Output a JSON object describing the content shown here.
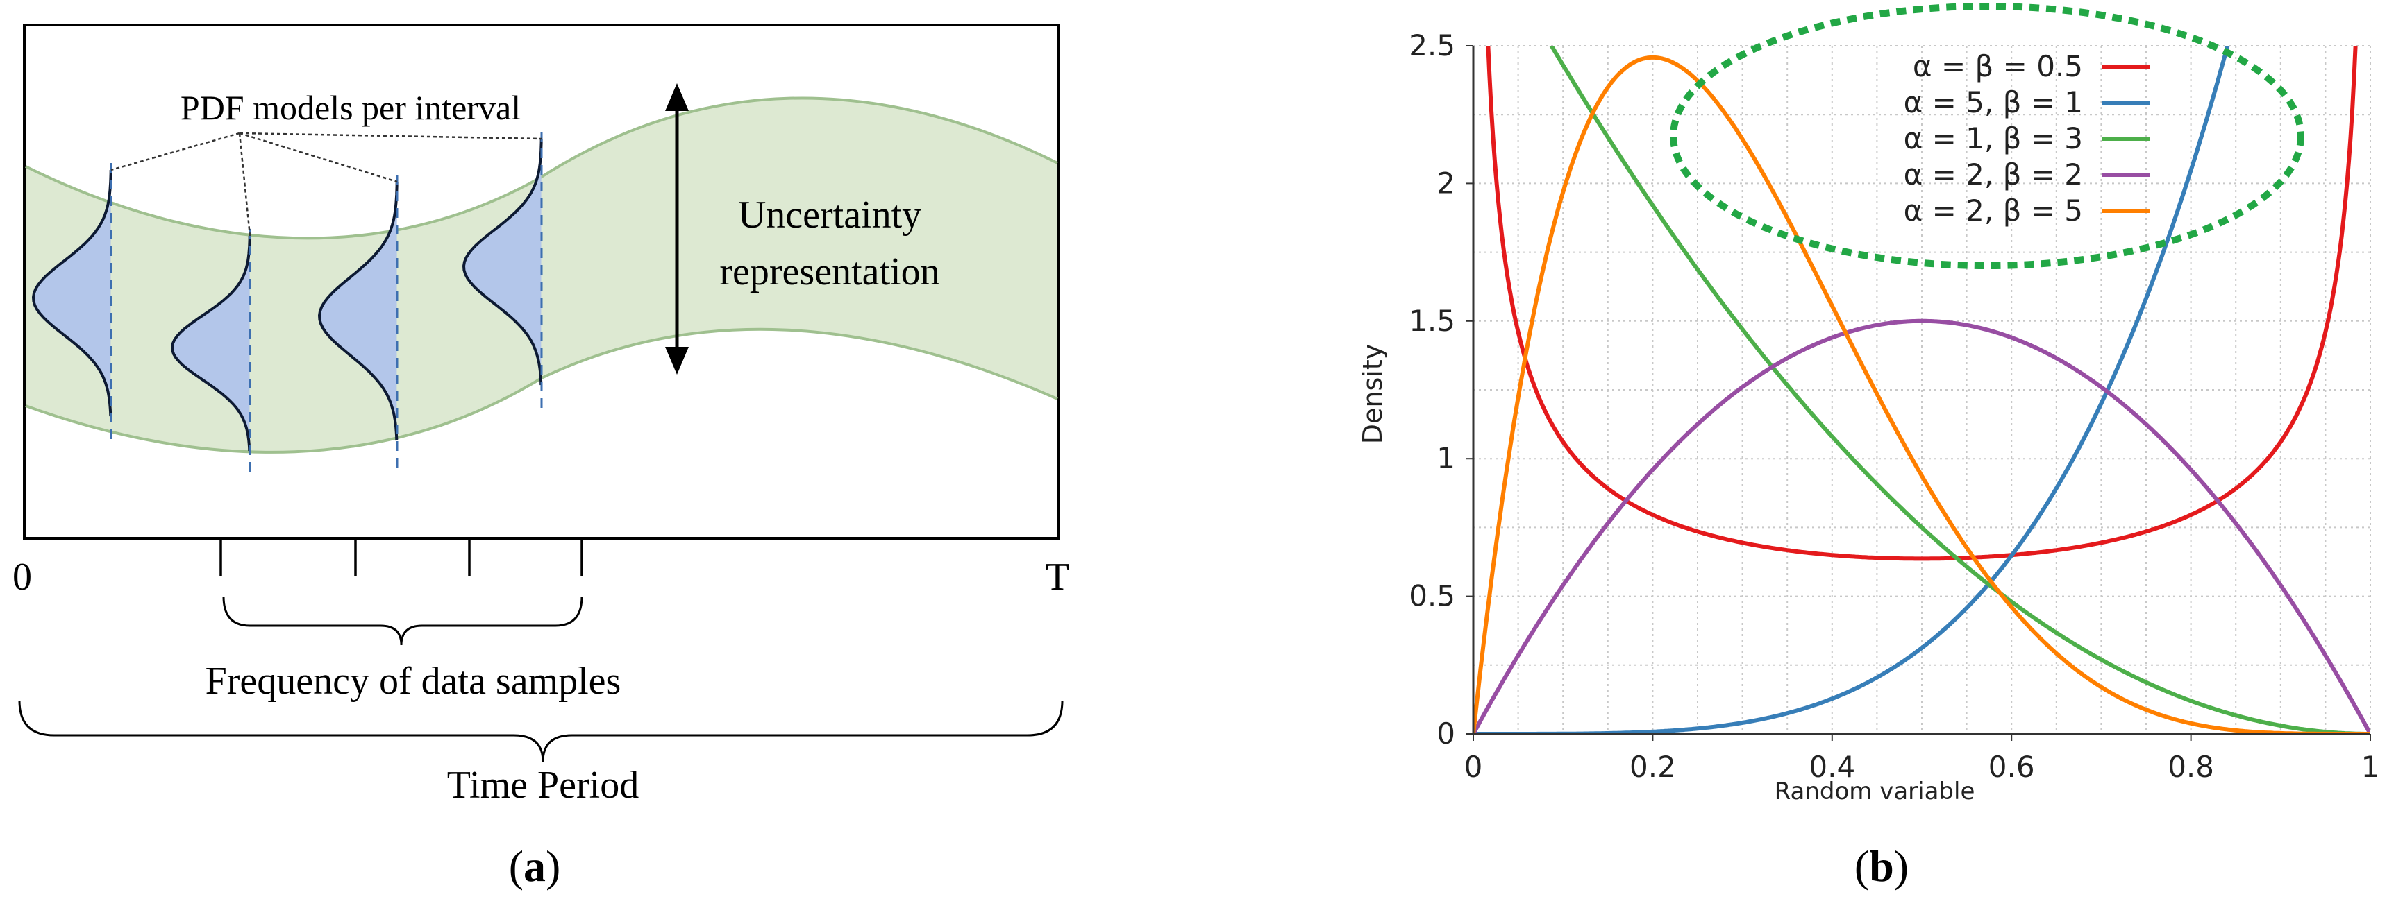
{
  "panel_a": {
    "pdf_label": "PDF models per interval",
    "uncertainty_line1": "Uncertainty",
    "uncertainty_line2": "representation",
    "axis_start": "0",
    "axis_end": "T",
    "frequency_label": "Frequency of data samples",
    "period_label": "Time Period",
    "caption_open": "(",
    "caption_letter": "a",
    "caption_close": ")",
    "colors": {
      "band": "#dde9d2",
      "band_edge": "#9fc08f",
      "pdf_fill": "#b3c6ea",
      "dashed": "#3d6fb0"
    }
  },
  "panel_b": {
    "caption_open": "(",
    "caption_letter": "b",
    "caption_close": ")",
    "highlight_color": "#22a745"
  },
  "chart_data": {
    "type": "line",
    "title": "",
    "xlabel": "Random variable",
    "ylabel": "Density",
    "xlim": [
      0,
      1
    ],
    "ylim": [
      0,
      2.5
    ],
    "xticks": [
      "0",
      "0.2",
      "0.4",
      "0.6",
      "0.8",
      "1"
    ],
    "yticks": [
      "0",
      "0.5",
      "1",
      "1.5",
      "2",
      "2.5"
    ],
    "grid": true,
    "legend_position": "top-right",
    "series": [
      {
        "name": "α = β = 0.5",
        "alpha": 0.5,
        "beta": 0.5,
        "color": "#e41a1c"
      },
      {
        "name": "α = 5, β = 1",
        "alpha": 5,
        "beta": 1,
        "color": "#377eb8"
      },
      {
        "name": "α = 1, β = 3",
        "alpha": 1,
        "beta": 3,
        "color": "#4daf4a"
      },
      {
        "name": "α = 2, β = 2",
        "alpha": 2,
        "beta": 2,
        "color": "#984ea3"
      },
      {
        "name": "α = 2, β = 5",
        "alpha": 2,
        "beta": 5,
        "color": "#ff7f00"
      }
    ]
  }
}
